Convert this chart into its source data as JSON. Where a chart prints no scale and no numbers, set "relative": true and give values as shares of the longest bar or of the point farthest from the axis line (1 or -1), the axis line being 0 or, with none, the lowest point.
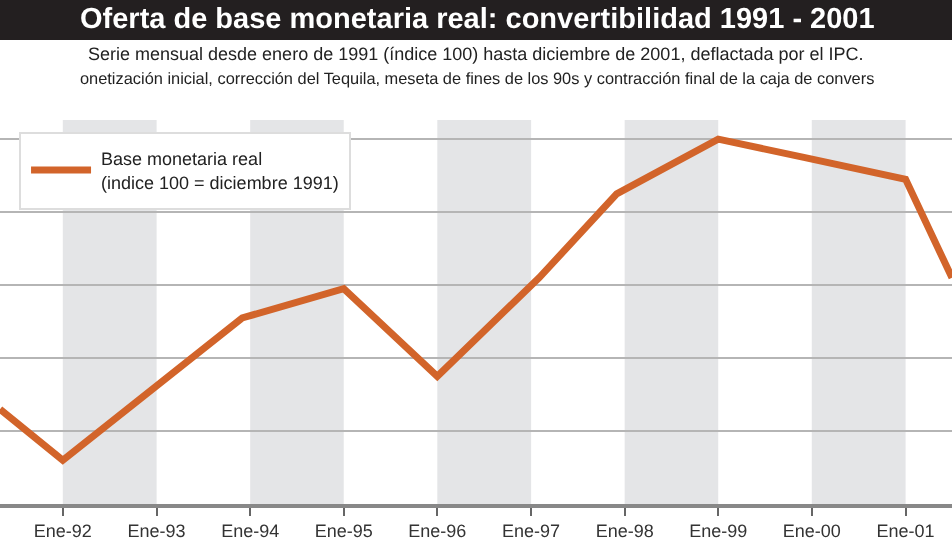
{
  "chart_data": {
    "type": "line",
    "title": "Oferta de base monetaria real: convertibilidad 1991 - 2001",
    "subtitle": "Serie mensual desde enero de 1991 (índice 100) hasta diciembre de 2001, deflactada por el IPC.\nonetización inicial, corrección del Tequila, meseta de fines de los 90s y contracción final de la caja de convers",
    "relative": true,
    "x": [
      "1991-05",
      "1992-01",
      "1993-12",
      "1995-01",
      "1996-01",
      "1997-02",
      "1997-12",
      "1999-01",
      "1999-12",
      "2001-01",
      "2001-07"
    ],
    "series": [
      {
        "name": "Base monetaria real\n(indice 100 = diciembre 1991)",
        "color": "#d2642a",
        "values": [
          0.26,
          0.12,
          0.51,
          0.59,
          0.35,
          0.62,
          0.85,
          1,
          0.95,
          0.89,
          0.62
        ]
      }
    ],
    "xlim": [
      "1991-05",
      "2001-07"
    ],
    "xticks": [
      {
        "value": "1992-01",
        "label": "Ene-92"
      },
      {
        "value": "1993-01",
        "label": "Ene-93"
      },
      {
        "value": "1994-01",
        "label": "Ene-94"
      },
      {
        "value": "1995-01",
        "label": "Ene-95"
      },
      {
        "value": "1996-01",
        "label": "Ene-96"
      },
      {
        "value": "1997-01",
        "label": "Ene-97"
      },
      {
        "value": "1998-01",
        "label": "Ene-98"
      },
      {
        "value": "1999-01",
        "label": "Ene-99"
      },
      {
        "value": "2000-01",
        "label": "Ene-00"
      },
      {
        "value": "2001-01",
        "label": "Ene-01"
      }
    ],
    "bands": [
      {
        "axis": "x",
        "from": "1992-01",
        "to": "1993-01",
        "color": "#e4e5e7"
      },
      {
        "axis": "x",
        "from": "1994-01",
        "to": "1995-01",
        "color": "#e4e5e7"
      },
      {
        "axis": "x",
        "from": "1996-01",
        "to": "1997-01",
        "color": "#e4e5e7"
      },
      {
        "axis": "x",
        "from": "1998-01",
        "to": "1999-01",
        "color": "#e4e5e7"
      },
      {
        "axis": "x",
        "from": "2000-01",
        "to": "2001-01",
        "color": "#e4e5e7"
      }
    ],
    "grid": "y",
    "legend": "top left",
    "marker": "none",
    "line_style": "solid"
  }
}
